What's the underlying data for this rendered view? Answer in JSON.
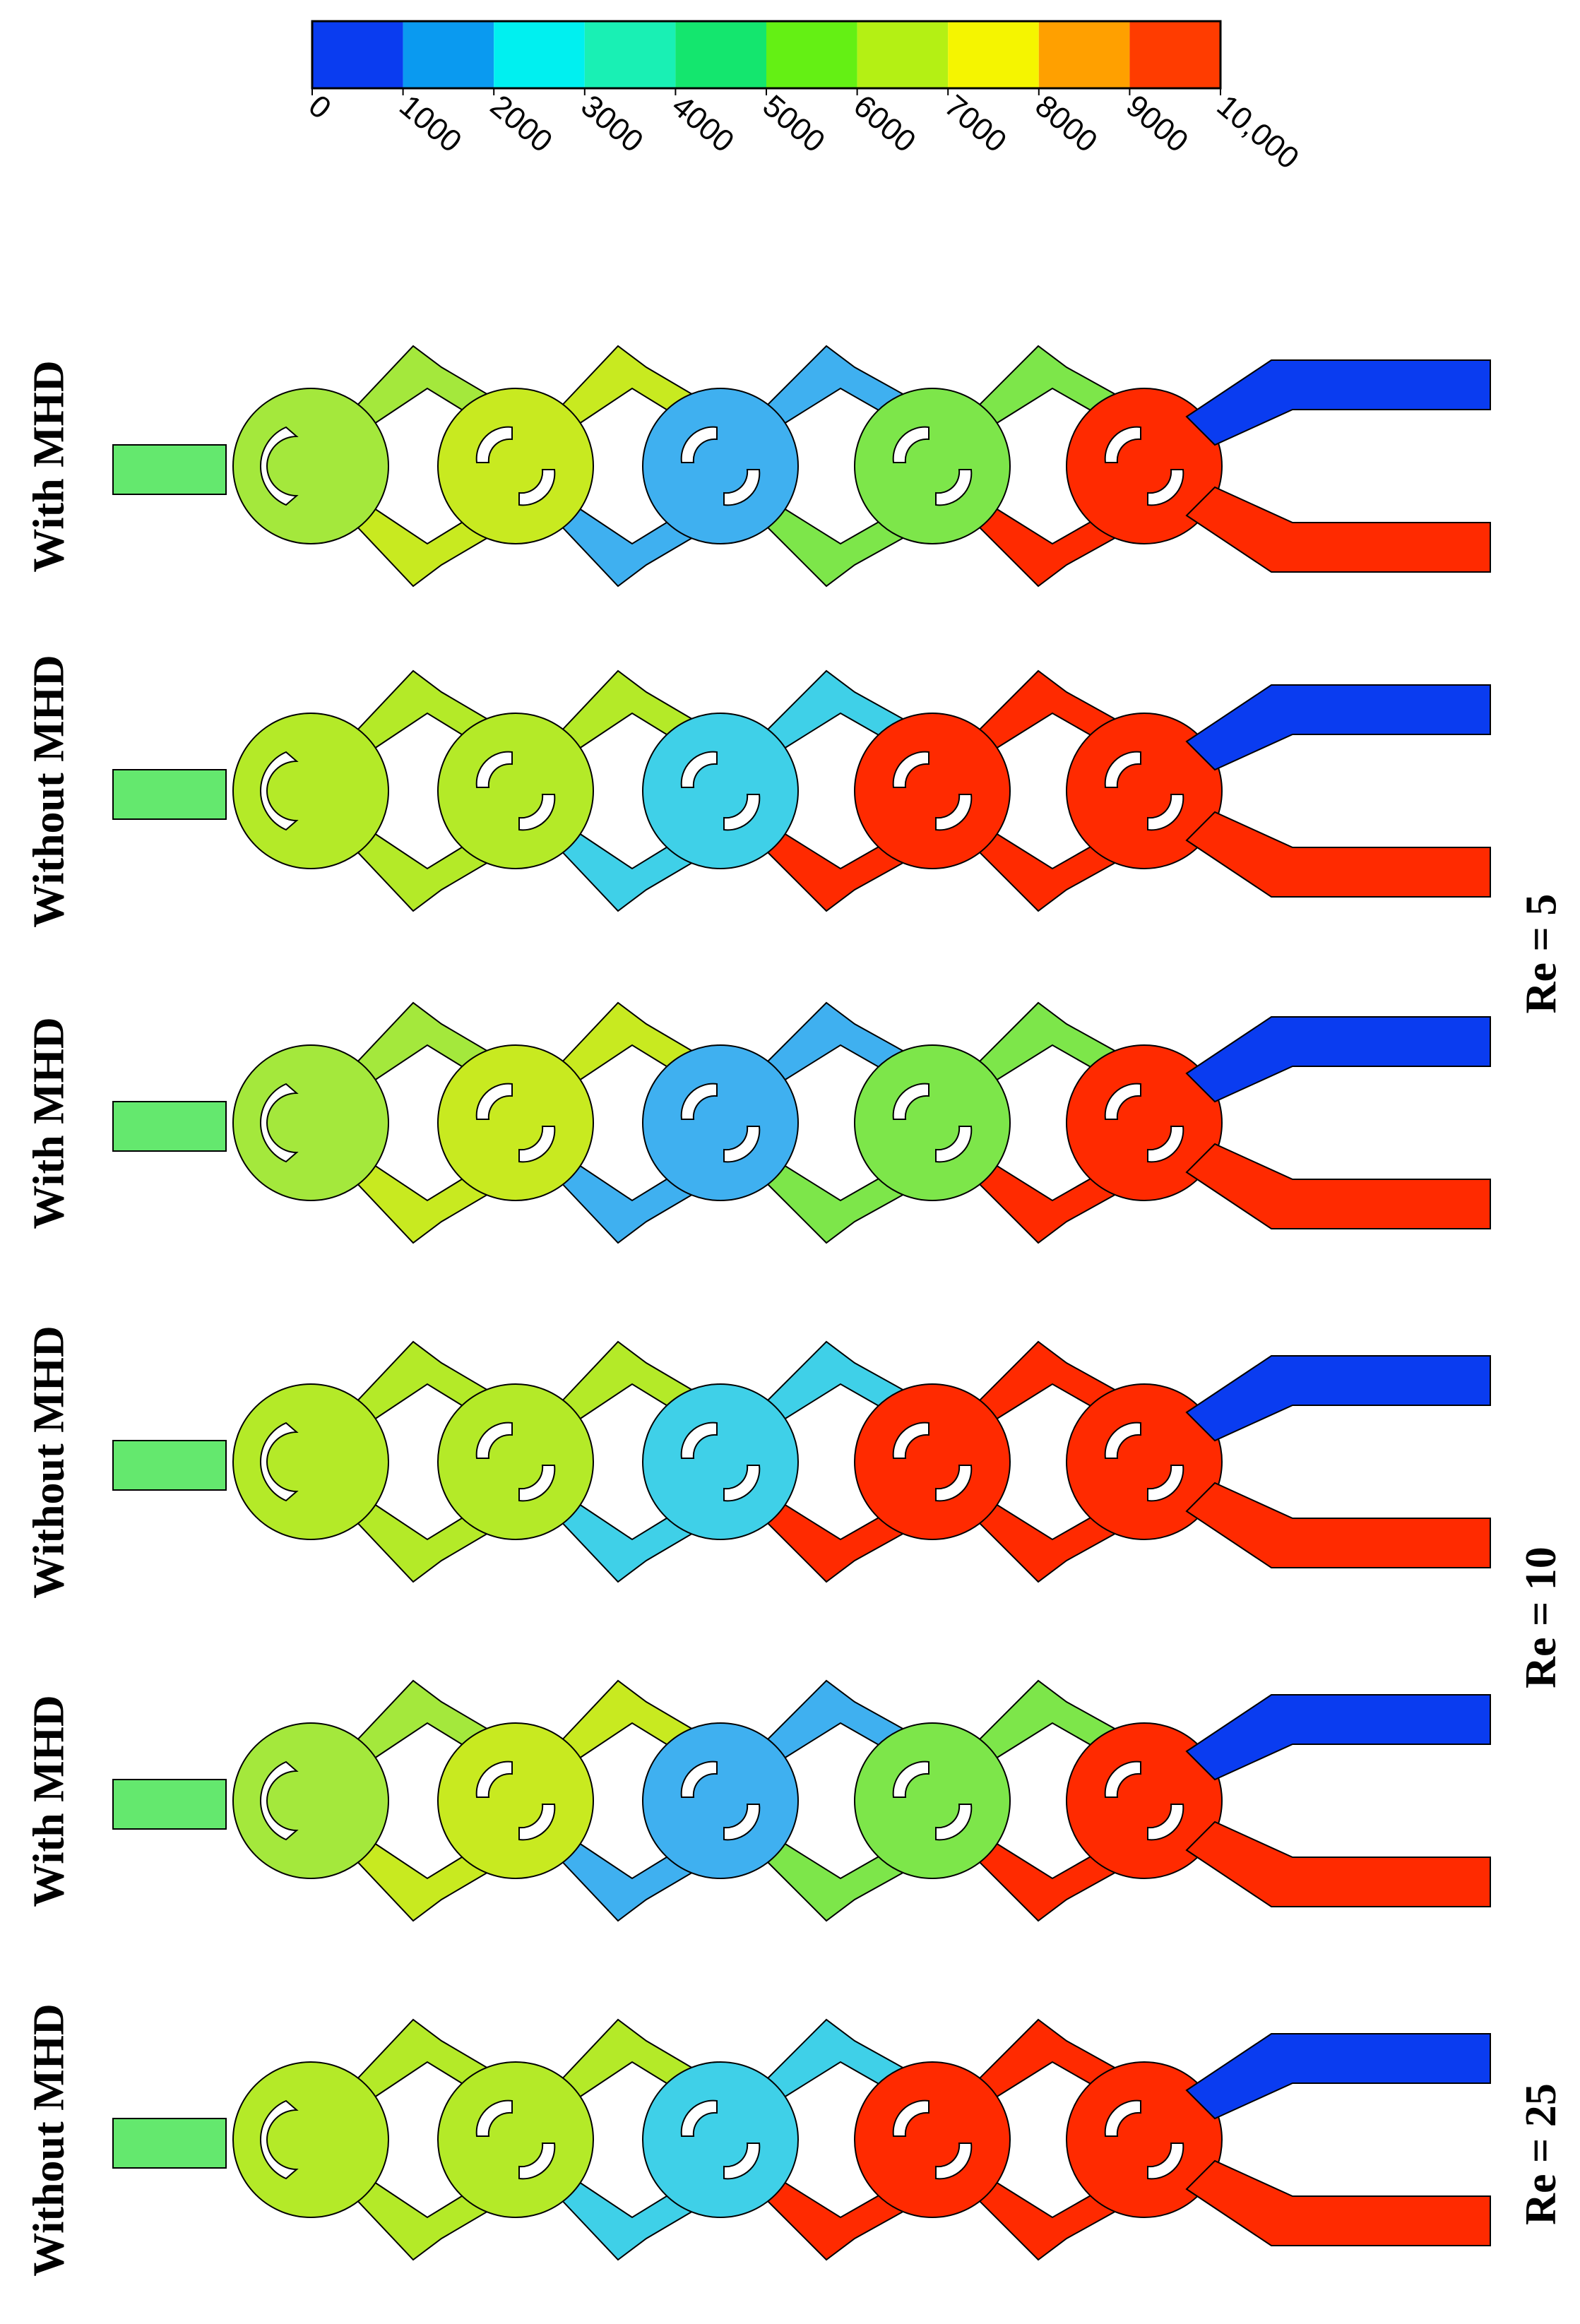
{
  "colorbar": {
    "colors": [
      "#0a3cf0",
      "#0a9af0",
      "#00f0f0",
      "#19f0b4",
      "#14e66e",
      "#64f014",
      "#b4f014",
      "#f5f500",
      "#ffa000",
      "#ff3c00"
    ],
    "ticks": [
      "0",
      "1000",
      "2000",
      "3000",
      "4000",
      "5000",
      "6000",
      "7000",
      "8000",
      "9000",
      "10,000"
    ]
  },
  "panels": [
    {
      "label": "With MHD",
      "mhd": true
    },
    {
      "label": "Without MHD",
      "mhd": false
    },
    {
      "label": "With MHD",
      "mhd": true
    },
    {
      "label": "Without MHD",
      "mhd": false
    },
    {
      "label": "With MHD",
      "mhd": true
    },
    {
      "label": "Without MHD",
      "mhd": false
    }
  ],
  "re_labels": [
    "Re = 5",
    "Re = 10",
    "Re = 25"
  ],
  "mixer": {
    "chambers_mhd": [
      "#a4e83c",
      "#c8ea20",
      "#3fb0f0",
      "#7de64a",
      "#ff2a00"
    ],
    "chambers_nomhd": [
      "#b4ea28",
      "#b4ea28",
      "#3fd0e8",
      "#ff2a00",
      "#ff2a00"
    ],
    "inlet_low": "#0a3cf0",
    "inlet_high": "#ff2a00",
    "outlet": "#64e86e"
  }
}
